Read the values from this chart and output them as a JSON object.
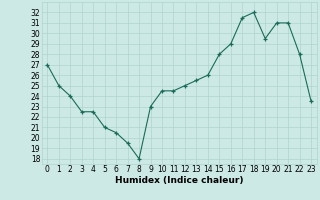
{
  "x": [
    0,
    1,
    2,
    3,
    4,
    5,
    6,
    7,
    8,
    9,
    10,
    11,
    12,
    13,
    14,
    15,
    16,
    17,
    18,
    19,
    20,
    21,
    22,
    23
  ],
  "y": [
    27,
    25,
    24,
    22.5,
    22.5,
    21,
    20.5,
    19.5,
    18,
    23,
    24.5,
    24.5,
    25,
    25.5,
    26,
    28,
    29,
    31.5,
    32,
    29.5,
    31,
    31,
    28,
    23.5
  ],
  "xlabel": "Humidex (Indice chaleur)",
  "xlim": [
    -0.5,
    23.5
  ],
  "ylim": [
    17.5,
    33
  ],
  "yticks": [
    18,
    19,
    20,
    21,
    22,
    23,
    24,
    25,
    26,
    27,
    28,
    29,
    30,
    31,
    32
  ],
  "xticks": [
    0,
    1,
    2,
    3,
    4,
    5,
    6,
    7,
    8,
    9,
    10,
    11,
    12,
    13,
    14,
    15,
    16,
    17,
    18,
    19,
    20,
    21,
    22,
    23
  ],
  "line_color": "#1a6b5a",
  "marker": "+",
  "bg_color": "#cce9e5",
  "grid_color": "#aed4cf",
  "label_fontsize": 6.5,
  "tick_fontsize": 5.5
}
